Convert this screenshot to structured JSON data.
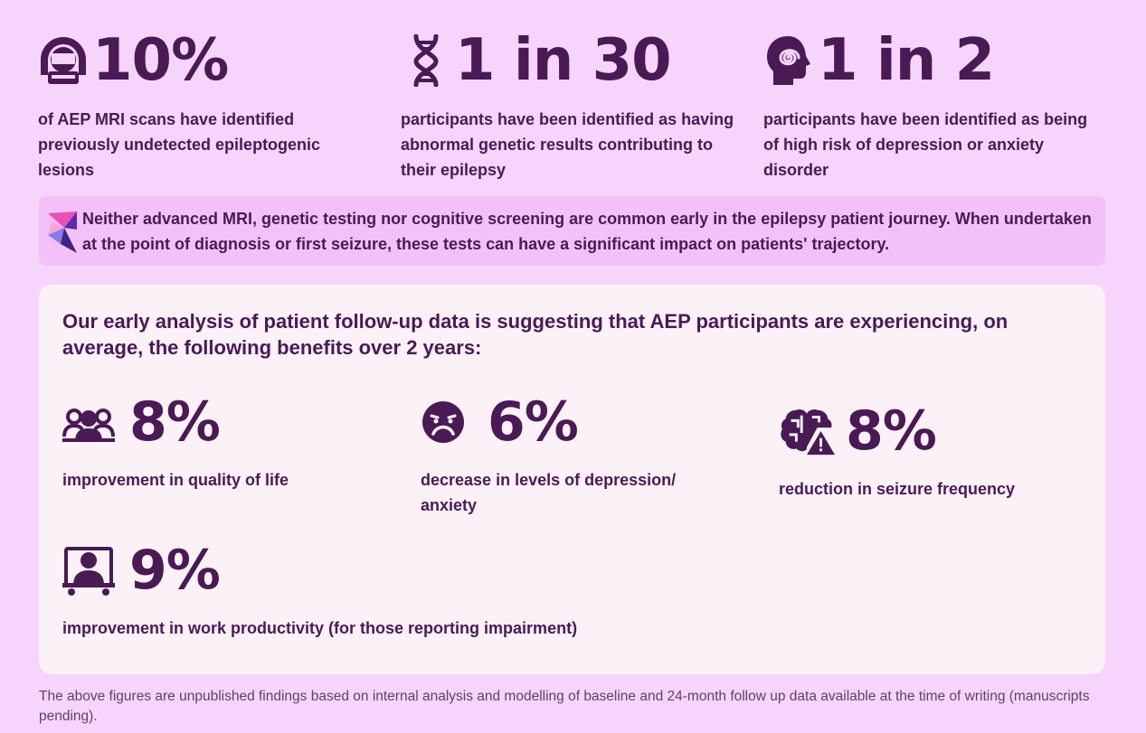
{
  "top_stats": [
    {
      "value": "10%",
      "description": "of AEP MRI scans have identified previously undetected epileptogenic lesions",
      "icon": "mri-scanner-icon"
    },
    {
      "value": "1 in 30",
      "description": "participants have been identified as having abnormal genetic results contributing to their epilepsy",
      "icon": "dna-icon"
    },
    {
      "value": "1 in 2",
      "description": "participants have been identified as being of high risk of depression or anxiety disorder",
      "icon": "head-spiral-icon"
    }
  ],
  "banner": {
    "text": "Neither advanced MRI, genetic testing nor cognitive screening are common early in the epilepsy patient journey. When undertaken at the point of diagnosis or first seizure, these tests can have a significant impact on patients' trajectory.",
    "icon": "aep-logo-icon"
  },
  "benefits": {
    "intro": "Our early analysis of patient follow-up data is suggesting that AEP participants are experiencing, on average, the following benefits over 2 years:",
    "items": [
      {
        "value": "8%",
        "description": "improvement in quality of life",
        "icon": "people-group-icon"
      },
      {
        "value": "6%",
        "description": "decrease in levels of depression/ anxiety",
        "icon": "sad-face-icon"
      },
      {
        "value": "8%",
        "description": "reduction in seizure frequency",
        "icon": "brain-warning-icon"
      },
      {
        "value": "9%",
        "description": "improvement in work productivity (for those reporting impairment)",
        "icon": "person-at-screen-icon"
      }
    ]
  },
  "footnote": "The above figures are unpublished findings based on internal analysis and modelling of baseline and 24-month follow up data available at the time of writing (manuscripts pending).",
  "colors": {
    "background": "#f7d4fb",
    "banner": "#f3c0f8",
    "panel": "#fdf1f8",
    "text": "#4a1a55"
  }
}
